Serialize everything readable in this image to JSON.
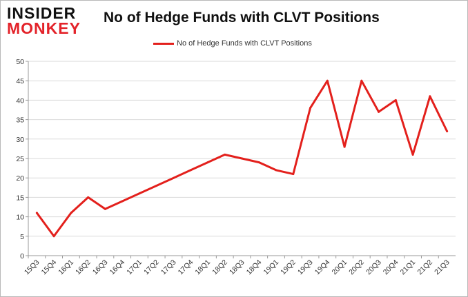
{
  "brand": {
    "line1": "INSIDER",
    "line2": "MONKEY"
  },
  "chart_data": {
    "type": "line",
    "title": "No of Hedge Funds with CLVT Positions",
    "xlabel": "",
    "ylabel": "",
    "ylim": [
      0,
      50
    ],
    "yticks": [
      0,
      5,
      10,
      15,
      20,
      25,
      30,
      35,
      40,
      45,
      50
    ],
    "grid": true,
    "legend_position": "top-center",
    "categories": [
      "15Q3",
      "15Q4",
      "16Q1",
      "16Q2",
      "16Q3",
      "16Q4",
      "17Q1",
      "17Q2",
      "17Q3",
      "17Q4",
      "18Q1",
      "18Q2",
      "18Q3",
      "18Q4",
      "19Q1",
      "19Q2",
      "19Q3",
      "19Q4",
      "20Q1",
      "20Q2",
      "20Q3",
      "20Q4",
      "21Q1",
      "21Q2",
      "21Q3"
    ],
    "series": [
      {
        "name": "No of Hedge Funds with CLVT Positions",
        "color": "#e3201c",
        "values": [
          11,
          5,
          11,
          15,
          12,
          14,
          16,
          18,
          20,
          22,
          24,
          26,
          25,
          24,
          22,
          21,
          38,
          45,
          28,
          45,
          37,
          40,
          26,
          41,
          32
        ]
      }
    ]
  }
}
